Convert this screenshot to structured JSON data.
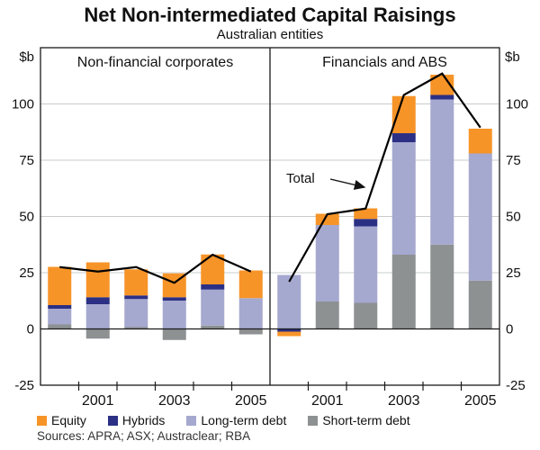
{
  "header": {
    "title": "Net Non-intermediated Capital Raisings",
    "subtitle": "Australian entities"
  },
  "chart_data": {
    "type": "bar",
    "stacked": true,
    "unit_label": "$b",
    "ylim": [
      -25,
      125
    ],
    "yticks": [
      100,
      75,
      50,
      25,
      0,
      -25
    ],
    "grid": true,
    "legend_position": "bottom",
    "colors": {
      "equity": "#F79428",
      "hybrids": "#2B3084",
      "long_term_debt": "#A5A8CF",
      "short_term_debt": "#8D9192",
      "total_line": "#000000",
      "gridline": "#C8CCCC",
      "axis": "#1a1a1a"
    },
    "legend": [
      {
        "label": "Equity",
        "color": "#F79428"
      },
      {
        "label": "Hybrids",
        "color": "#2B3084"
      },
      {
        "label": "Long-term debt",
        "color": "#A5A8CF"
      },
      {
        "label": "Short-term debt",
        "color": "#8D9192"
      }
    ],
    "panels": [
      {
        "label": "Non-financial corporates",
        "years": [
          2000,
          2001,
          2002,
          2003,
          2004,
          2005
        ],
        "xtick_labels": [
          "2001",
          "2003",
          "2005"
        ],
        "series": [
          {
            "name": "Short-term debt",
            "color_key": "short_term_debt",
            "values": [
              2.0,
              -4.3,
              0.8,
              -4.9,
              1.5,
              -2.4
            ]
          },
          {
            "name": "Long-term debt",
            "color_key": "long_term_debt",
            "values": [
              7.0,
              11.0,
              12.5,
              12.6,
              16.0,
              13.7
            ]
          },
          {
            "name": "Hybrids",
            "color_key": "hybrids",
            "values": [
              1.6,
              3.1,
              1.6,
              1.5,
              2.3,
              0
            ]
          },
          {
            "name": "Equity",
            "color_key": "equity",
            "values": [
              17.0,
              15.5,
              11.6,
              10.6,
              13.3,
              12.3
            ]
          }
        ],
        "total_line": [
          27.5,
          25.5,
          27.5,
          20.5,
          33.0,
          25.5
        ]
      },
      {
        "label": "Financials and ABS",
        "years": [
          2000,
          2001,
          2002,
          2003,
          2004,
          2005
        ],
        "xtick_labels": [
          "2001",
          "2003",
          "2005"
        ],
        "series": [
          {
            "name": "Short-term debt",
            "color_key": "short_term_debt",
            "values": [
              0,
              12.2,
              11.6,
              33.0,
              37.5,
              21.5
            ]
          },
          {
            "name": "Long-term debt",
            "color_key": "long_term_debt",
            "values": [
              24.0,
              34.0,
              34.0,
              50.0,
              64.5,
              56.5
            ]
          },
          {
            "name": "Hybrids",
            "color_key": "hybrids",
            "values": [
              -1.2,
              0,
              3.3,
              4.0,
              2.0,
              0
            ]
          },
          {
            "name": "Equity",
            "color_key": "equity",
            "values": [
              -2.0,
              5.0,
              4.7,
              16.5,
              9.0,
              11.0
            ]
          }
        ],
        "total_line": [
          21.0,
          51.0,
          53.5,
          104.0,
          113.5,
          89.5
        ],
        "annotation": {
          "text": "Total"
        }
      }
    ]
  },
  "footer": {
    "sources": "Sources: APRA; ASX; Austraclear; RBA"
  }
}
